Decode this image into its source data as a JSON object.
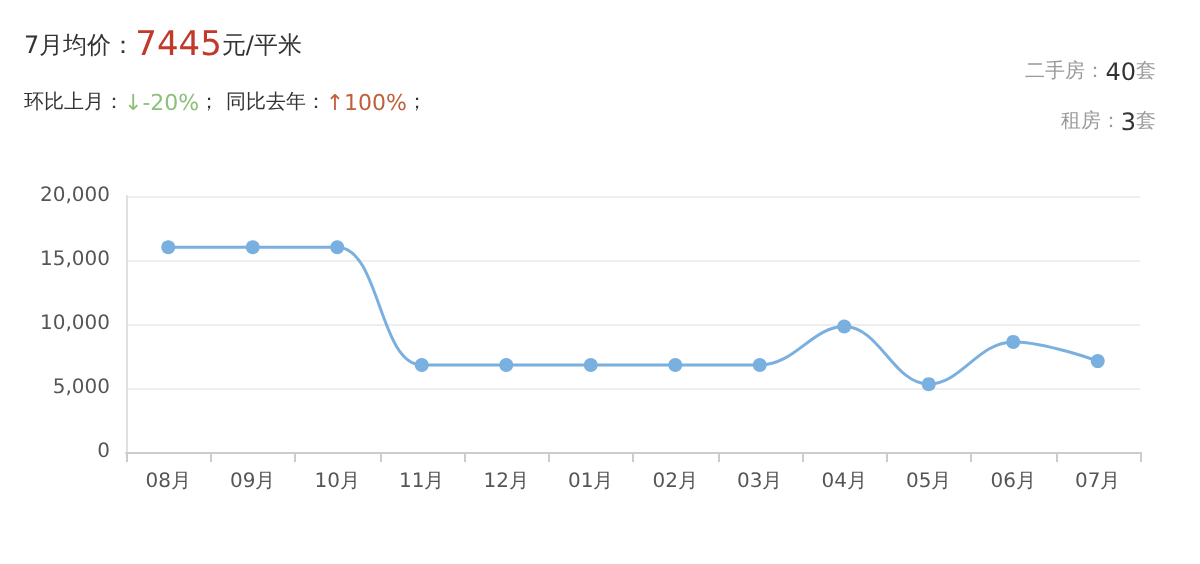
{
  "chart_data": {
    "type": "line",
    "title": "7月均价：7445元/平米",
    "subtitle": "环比上月：↓-20%； 同比去年：↑100%；",
    "annotations": [
      "二手房：40套",
      "租房：3套"
    ],
    "categories": [
      "08月",
      "09月",
      "10月",
      "11月",
      "12月",
      "01月",
      "02月",
      "03月",
      "04月",
      "05月",
      "06月",
      "07月"
    ],
    "series": [
      {
        "color": "#7ab0e0",
        "values": [
          16000,
          16000,
          16000,
          6800,
          6800,
          6800,
          6800,
          6800,
          9800,
          5300,
          8600,
          7100
        ]
      }
    ],
    "ylim": [
      0,
      20000
    ],
    "yticks": [
      0,
      {
        "value": 5000,
        "label": "5,000"
      },
      {
        "value": 10000,
        "label": "10,000"
      },
      {
        "value": 15000,
        "label": "15,000"
      },
      {
        "value": 20000,
        "label": "20,000"
      }
    ],
    "grid": "y",
    "marker": "circle",
    "line_style": "solid"
  }
}
